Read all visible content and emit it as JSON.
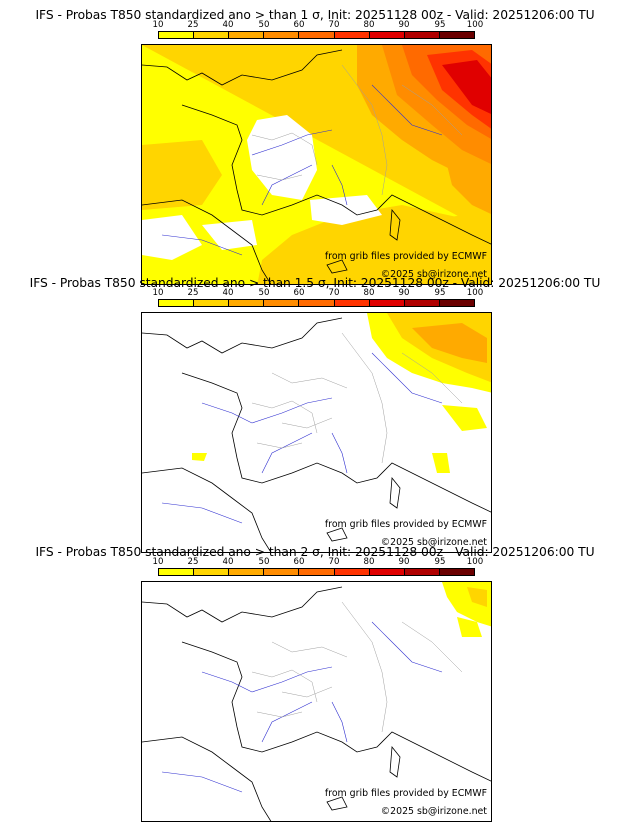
{
  "colors": {
    "prob_10_25": "#ffff00",
    "prob_25_40": "#ffd500",
    "prob_40_50": "#ffaa00",
    "prob_50_60": "#ff8c00",
    "prob_60_70": "#ff6a00",
    "prob_70_80": "#ff3300",
    "prob_80_90": "#e00000",
    "prob_90_95": "#b00000",
    "prob_95_100": "#6b0000",
    "coastline": "#000000",
    "rivers": "#3030d0",
    "borders": "#a0a0a0"
  },
  "scale_ticks": [
    "10",
    "25",
    "40",
    "50",
    "60",
    "70",
    "80",
    "90",
    "95",
    "100"
  ],
  "credits": {
    "source": "from grib files provided by ECMWF",
    "copyright": "©2025 sb@irizone.net"
  },
  "panels": [
    {
      "title": "IFS - Probas T850  standardized ano > than 1 σ, Init: 20251128 00z - Valid: 20251206:00 TU",
      "threshold_sigma": "1"
    },
    {
      "title": "IFS - Probas T850  standardized ano > than 1.5 σ, Init: 20251128 00z - Valid: 20251206:00 TU",
      "threshold_sigma": "1.5"
    },
    {
      "title": "IFS - Probas T850  standardized ano > than 2 σ, Init: 20251128 00z - Valid: 20251206:00 TU",
      "threshold_sigma": "2"
    }
  ]
}
